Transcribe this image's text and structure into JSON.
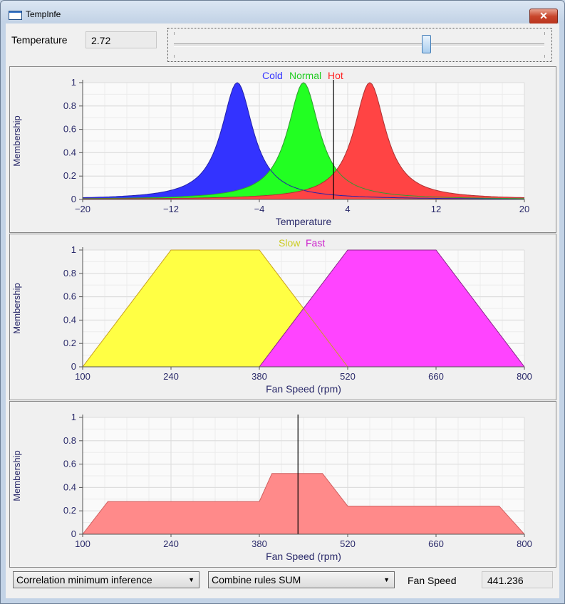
{
  "window": {
    "title": "TempInfe",
    "close_glyph": "✕"
  },
  "temperature": {
    "label": "Temperature",
    "value": "2.72",
    "slider_fraction": 0.68
  },
  "charts": {
    "temperature": {
      "ylabel": "Membership",
      "xlabel": "Temperature",
      "xticks": [
        "−20",
        "−12",
        "−4",
        "4",
        "12",
        "20"
      ],
      "yticks": [
        "0",
        "0.2",
        "0.4",
        "0.6",
        "0.8",
        "1"
      ],
      "legend": [
        {
          "name": "Cold",
          "color": "#3333ff"
        },
        {
          "name": "Normal",
          "color": "#22cc22"
        },
        {
          "name": "Hot",
          "color": "#ff2222"
        }
      ]
    },
    "fan": {
      "ylabel": "Membership",
      "xlabel": "Fan Speed (rpm)",
      "xticks": [
        "100",
        "240",
        "380",
        "520",
        "660",
        "800"
      ],
      "yticks": [
        "0",
        "0.2",
        "0.4",
        "0.6",
        "0.8",
        "1"
      ],
      "legend": [
        {
          "name": "Slow",
          "color": "#cccc22"
        },
        {
          "name": "Fast",
          "color": "#cc22cc"
        }
      ]
    },
    "output": {
      "ylabel": "Membership",
      "xlabel": "Fan Speed (rpm)",
      "xticks": [
        "100",
        "240",
        "380",
        "520",
        "660",
        "800"
      ],
      "yticks": [
        "0",
        "0.2",
        "0.4",
        "0.6",
        "0.8",
        "1"
      ]
    }
  },
  "chart_data": [
    {
      "type": "area",
      "xlabel": "Temperature",
      "ylabel": "Membership",
      "xlim": [
        -20,
        20
      ],
      "ylim": [
        0,
        1
      ],
      "grid": true,
      "legend_position": "top-center",
      "series": [
        {
          "name": "Cold",
          "shape": "bell",
          "center": -6,
          "width": 1.75,
          "color": "#3333ff"
        },
        {
          "name": "Normal",
          "shape": "bell",
          "center": 0,
          "width": 1.75,
          "color": "#22ff22"
        },
        {
          "name": "Hot",
          "shape": "bell",
          "center": 6,
          "width": 1.75,
          "color": "#ff4444"
        }
      ],
      "marker_x": 2.72
    },
    {
      "type": "area",
      "xlabel": "Fan Speed (rpm)",
      "ylabel": "Membership",
      "xlim": [
        100,
        800
      ],
      "ylim": [
        0,
        1
      ],
      "grid": true,
      "legend_position": "top-center",
      "series": [
        {
          "name": "Slow",
          "x": [
            100,
            240,
            380,
            520
          ],
          "y": [
            0,
            1,
            1,
            0
          ],
          "color": "#ffff44"
        },
        {
          "name": "Fast",
          "x": [
            380,
            520,
            660,
            800
          ],
          "y": [
            0,
            1,
            1,
            0
          ],
          "color": "#ff44ff"
        }
      ]
    },
    {
      "type": "area",
      "xlabel": "Fan Speed (rpm)",
      "ylabel": "Membership",
      "xlim": [
        100,
        800
      ],
      "ylim": [
        0,
        1
      ],
      "grid": true,
      "series": [
        {
          "x": [
            100,
            140,
            380,
            400,
            480,
            520,
            760,
            800
          ],
          "y": [
            0,
            0.28,
            0.28,
            0.52,
            0.52,
            0.24,
            0.24,
            0
          ],
          "color": "#ff8a8a"
        }
      ],
      "marker_x": 441.236
    }
  ],
  "controls": {
    "inference_select": "Correlation minimum inference",
    "combine_select": "Combine rules SUM",
    "fan_speed_label": "Fan Speed",
    "fan_speed_value": "441.236",
    "dropdown_arrow": "▼"
  }
}
